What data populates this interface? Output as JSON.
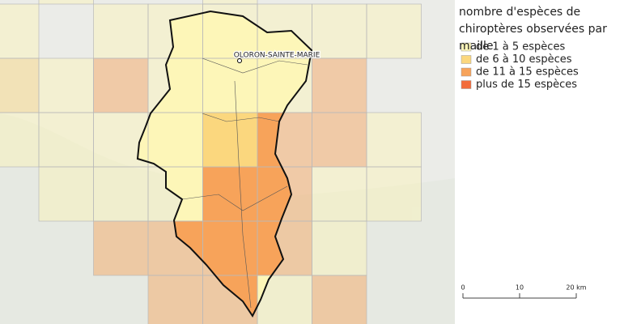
{
  "legend": {
    "title": "nombre d'espèces de chiroptères observées par maille",
    "items": [
      {
        "label": "de 1 à 5 espèces",
        "color": "#fdf6b8"
      },
      {
        "label": "de 6 à 10 espèces",
        "color": "#fbd77e"
      },
      {
        "label": "de 11 à 15 espèces",
        "color": "#f7a35a"
      },
      {
        "label": "plus de 15 espèces",
        "color": "#f26b3a"
      }
    ]
  },
  "places": [
    {
      "label": "OLORON-SAINTE-MARIE"
    }
  ],
  "scale_bar": {
    "labels": [
      "0",
      "10",
      "20 km"
    ]
  }
}
